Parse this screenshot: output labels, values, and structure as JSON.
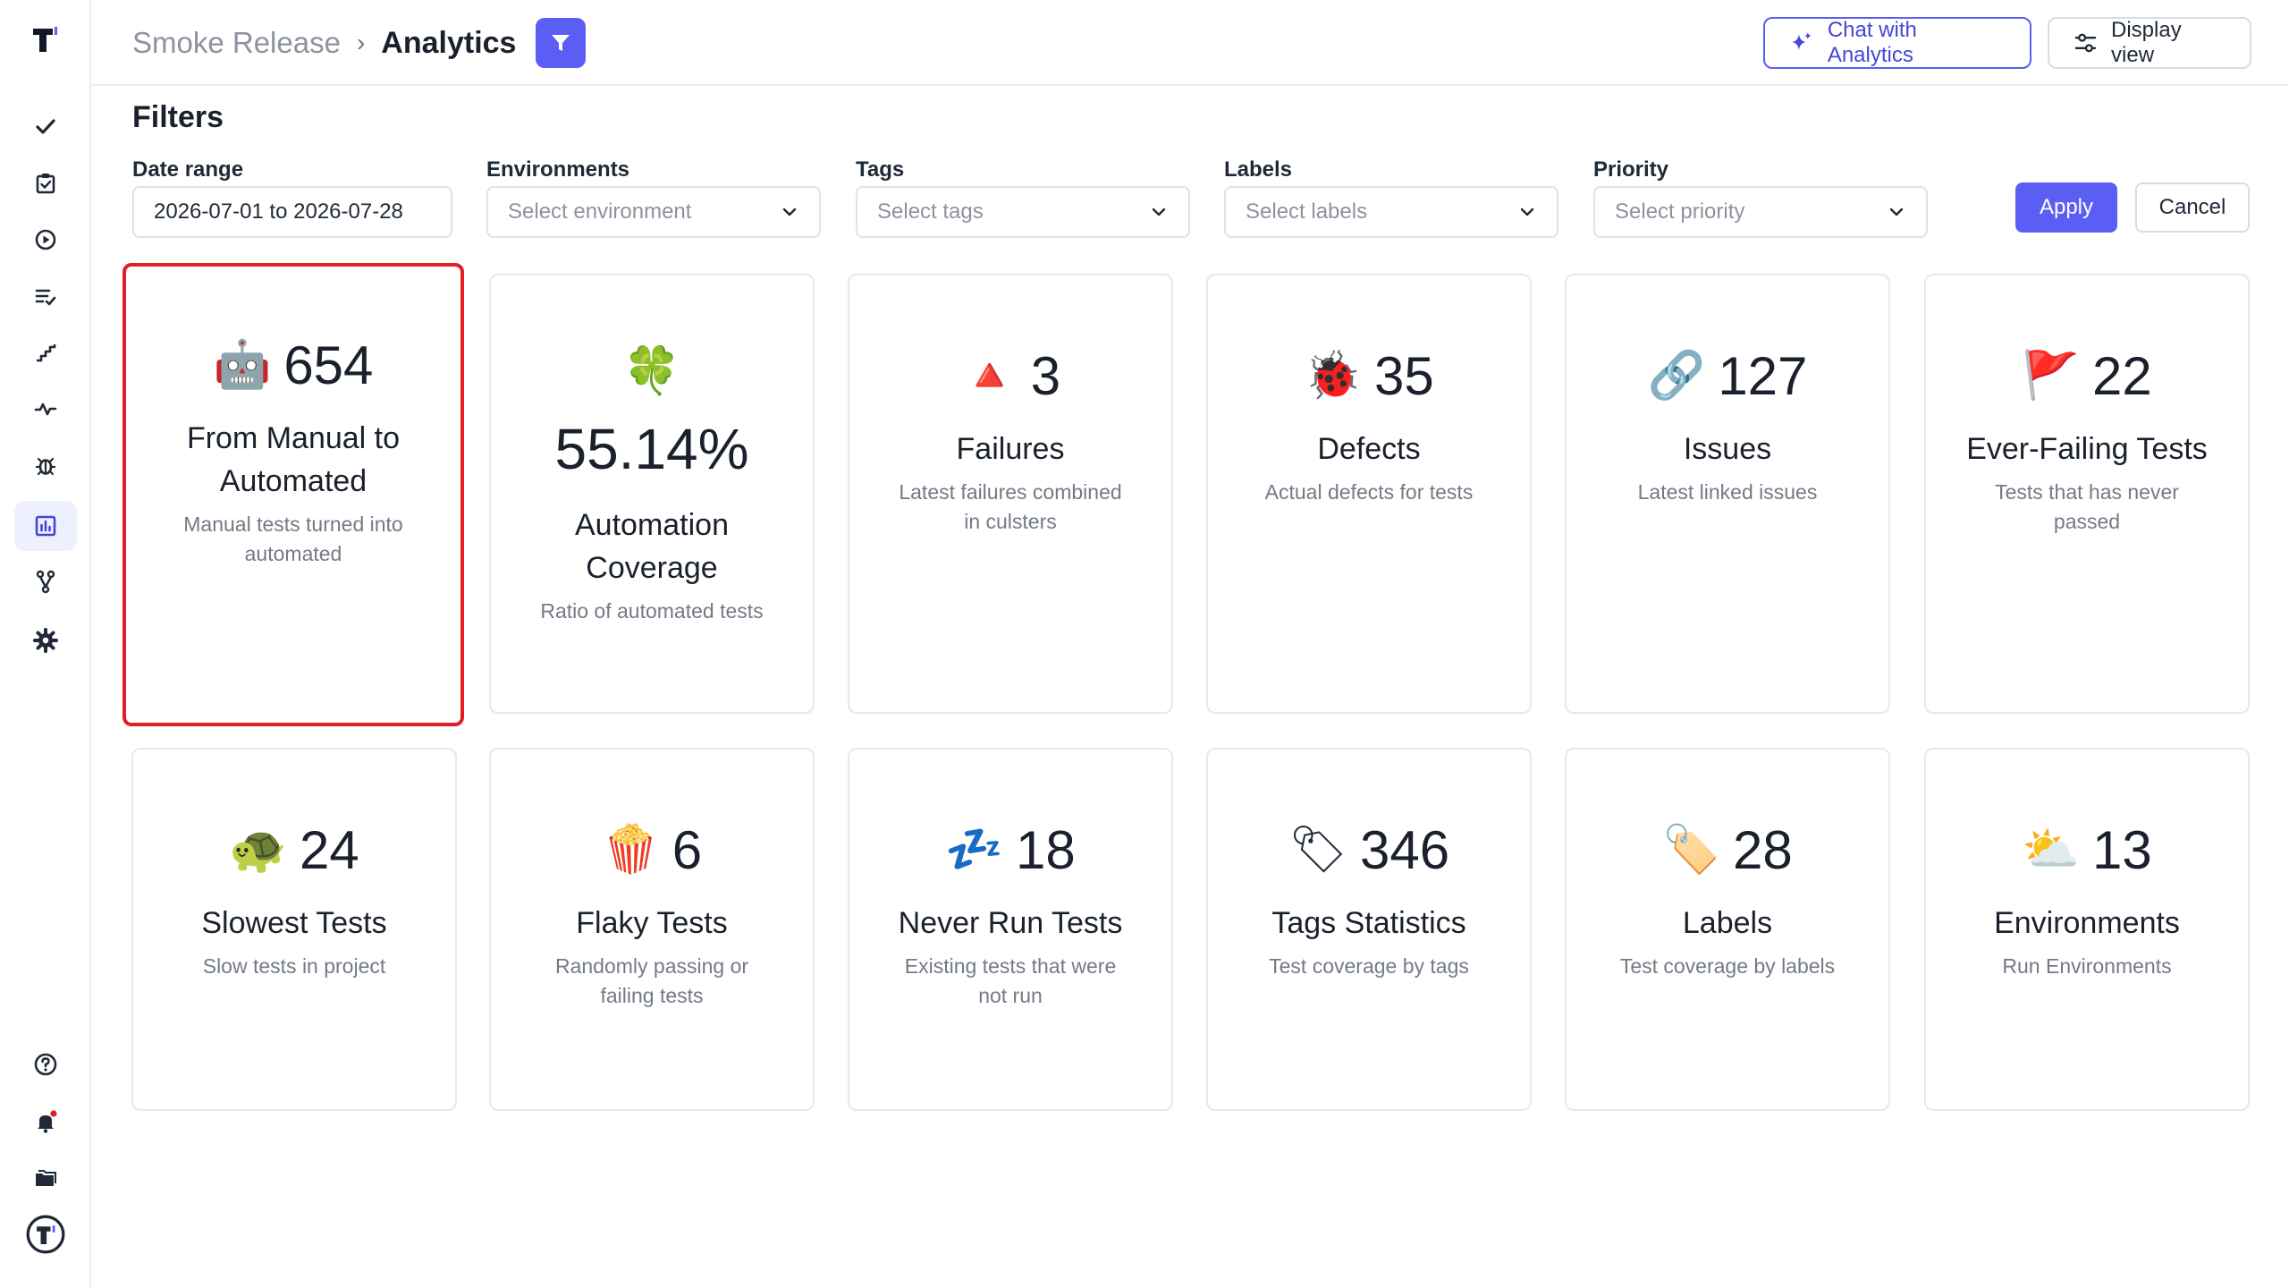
{
  "header": {
    "breadcrumb_parent": "Smoke Release",
    "breadcrumb_separator": "›",
    "breadcrumb_current": "Analytics",
    "chat_button": "Chat with Analytics",
    "display_button": "Display view"
  },
  "filters": {
    "title": "Filters",
    "date_range": {
      "label": "Date range",
      "value": "2026-07-01 to 2026-07-28"
    },
    "environments": {
      "label": "Environments",
      "placeholder": "Select environment"
    },
    "tags": {
      "label": "Tags",
      "placeholder": "Select tags"
    },
    "labels": {
      "label": "Labels",
      "placeholder": "Select labels"
    },
    "priority": {
      "label": "Priority",
      "placeholder": "Select priority"
    },
    "apply": "Apply",
    "cancel": "Cancel"
  },
  "cards": [
    {
      "icon": "robot-icon",
      "emoji": "🤖",
      "value": "654",
      "title": "From Manual to Automated",
      "desc": "Manual tests turned into automated"
    },
    {
      "icon": "clover-icon",
      "emoji": "🍀",
      "value": "55.14%",
      "title": "Automation Coverage",
      "desc": "Ratio of automated tests"
    },
    {
      "icon": "triangle-icon",
      "emoji": "🔺",
      "value": "3",
      "title": "Failures",
      "desc": "Latest failures combined in culsters"
    },
    {
      "icon": "ladybug-icon",
      "emoji": "🐞",
      "value": "35",
      "title": "Defects",
      "desc": "Actual defects for tests"
    },
    {
      "icon": "link-icon",
      "emoji": "🔗",
      "value": "127",
      "title": "Issues",
      "desc": "Latest linked issues"
    },
    {
      "icon": "flag-icon",
      "emoji": "🚩",
      "value": "22",
      "title": "Ever-Failing Tests",
      "desc": "Tests that has never passed"
    },
    {
      "icon": "turtle-icon",
      "emoji": "🐢",
      "value": "24",
      "title": "Slowest Tests",
      "desc": "Slow tests in project"
    },
    {
      "icon": "popcorn-icon",
      "emoji": "🍿",
      "value": "6",
      "title": "Flaky Tests",
      "desc": "Randomly passing or failing tests"
    },
    {
      "icon": "sleep-icon",
      "emoji": "💤",
      "value": "18",
      "title": "Never Run Tests",
      "desc": "Existing tests that were not run"
    },
    {
      "icon": "tag-icon",
      "emoji": "🏷",
      "value": "346",
      "title": "Tags Statistics",
      "desc": "Test coverage by tags"
    },
    {
      "icon": "label-icon",
      "emoji": "🏷️",
      "value": "28",
      "title": "Labels",
      "desc": "Test coverage by labels"
    },
    {
      "icon": "sun-cloud-icon",
      "emoji": "⛅",
      "value": "13",
      "title": "Environments",
      "desc": "Run Environments"
    }
  ],
  "colors": {
    "accent": "#5b5ef4",
    "selected_border": "#e21d23",
    "notification": "#e21d23"
  }
}
